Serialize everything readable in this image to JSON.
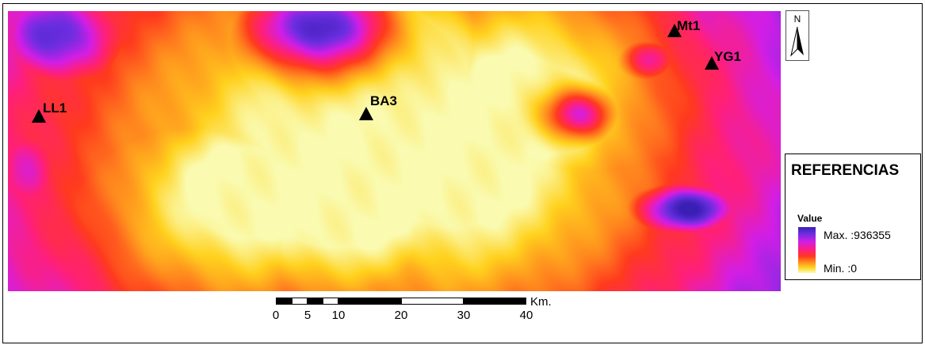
{
  "map": {
    "sites": [
      {
        "id": "LL1",
        "label": "LL1"
      },
      {
        "id": "BA3",
        "label": "BA3"
      },
      {
        "id": "Mt1",
        "label": "Mt1"
      },
      {
        "id": "YG1",
        "label": "YG1"
      }
    ]
  },
  "north_arrow": {
    "letter": "N",
    "icon": "north-arrow-icon"
  },
  "legend": {
    "title": "REFERENCIAS",
    "subtitle": "Value",
    "max_label": "Max. :936355",
    "min_label": "Min. :0",
    "max_value": 936355,
    "min_value": 0,
    "ramp_colors": [
      "#3a1fb5",
      "#6b2ee0",
      "#d21ee6",
      "#ff1f7a",
      "#ff3a1e",
      "#ff8a1e",
      "#ffd21e",
      "#fafbb0"
    ]
  },
  "scale_bar": {
    "unit": "Km.",
    "ticks": [
      "0",
      "5",
      "10",
      "20",
      "30",
      "40"
    ]
  }
}
